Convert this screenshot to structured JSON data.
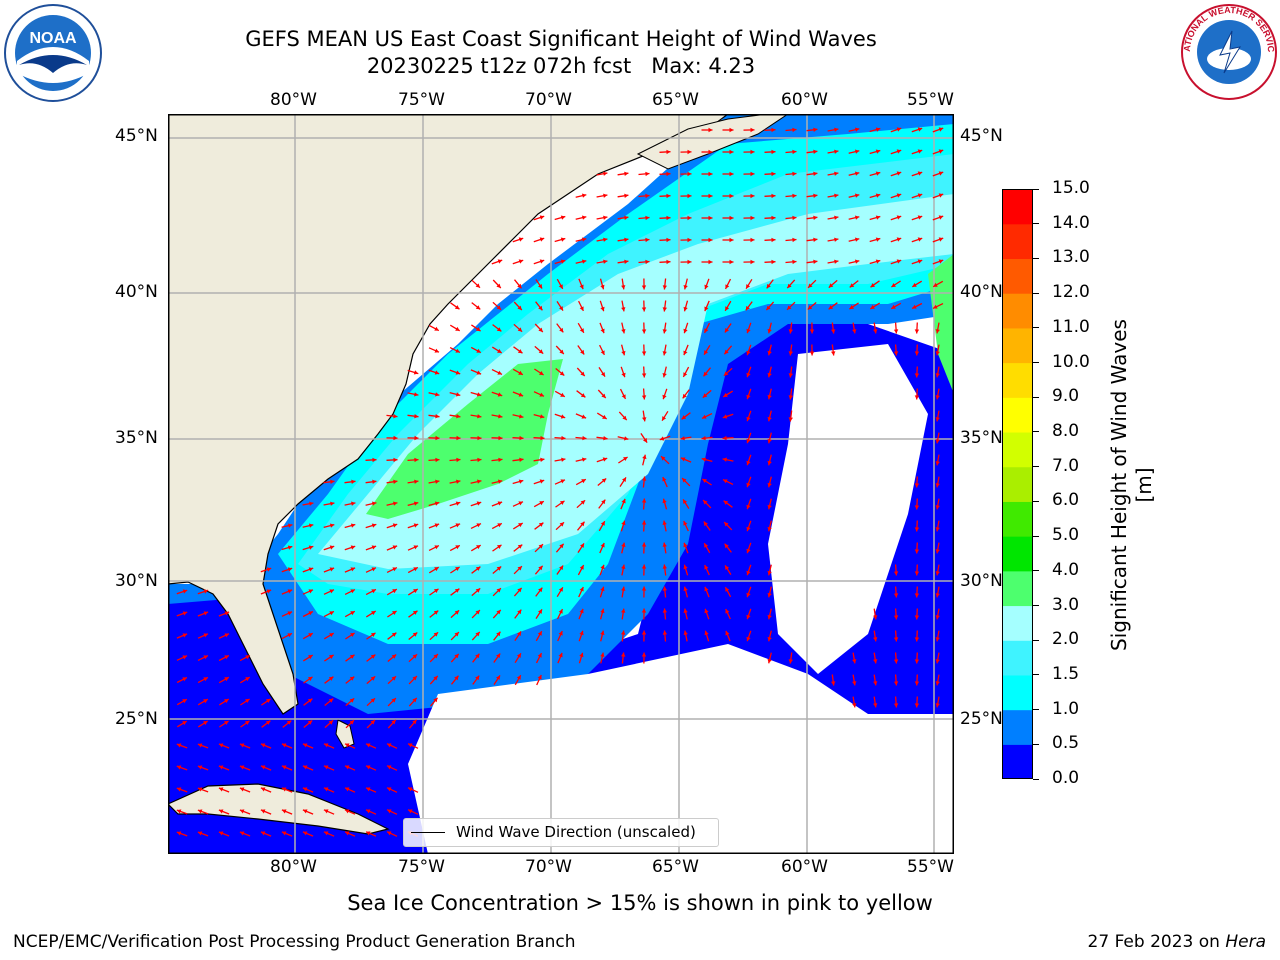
{
  "title": {
    "line1": "GEFS MEAN US East Coast Significant Height of Wind Waves",
    "line2": "20230225 t12z 072h fcst   Max: 4.23"
  },
  "lon_ticks": [
    "80°W",
    "75°W",
    "70°W",
    "65°W",
    "60°W",
    "55°W"
  ],
  "lat_ticks": [
    "45°N",
    "40°N",
    "35°N",
    "30°N",
    "25°N"
  ],
  "legend": {
    "label": "Wind Wave Direction (unscaled)"
  },
  "colorbar": {
    "label": "Significant Height of Wind Waves [m]",
    "ticks": [
      "0.0",
      "0.5",
      "1.0",
      "1.5",
      "2.0",
      "3.0",
      "4.0",
      "5.0",
      "6.0",
      "7.0",
      "8.0",
      "9.0",
      "10.0",
      "11.0",
      "12.0",
      "13.0",
      "14.0",
      "15.0"
    ],
    "colors": [
      "#0000ff",
      "#007fff",
      "#00ffff",
      "#3ff3ff",
      "#a5ffff",
      "#4dff6e",
      "#00e600",
      "#40ea00",
      "#aaee00",
      "#d2ff00",
      "#ffff00",
      "#ffdd00",
      "#ffb400",
      "#ff8c00",
      "#ff5a00",
      "#ff2a00",
      "#ff0000"
    ]
  },
  "ice_note": "Sea Ice Concentration > 15% is shown in pink to yellow",
  "footer": {
    "left": "NCEP/EMC/Verification Post Processing Product Generation Branch",
    "right_prefix": "27 Feb 2023 on ",
    "right_host": "Hera"
  },
  "logos": {
    "noaa_text": "NOAA",
    "nws_text": "NATIONAL WEATHER SERVICE"
  },
  "colors": {
    "land": "#efecdc",
    "arrow": "#ff0000",
    "grid": "#b0b0b0"
  }
}
